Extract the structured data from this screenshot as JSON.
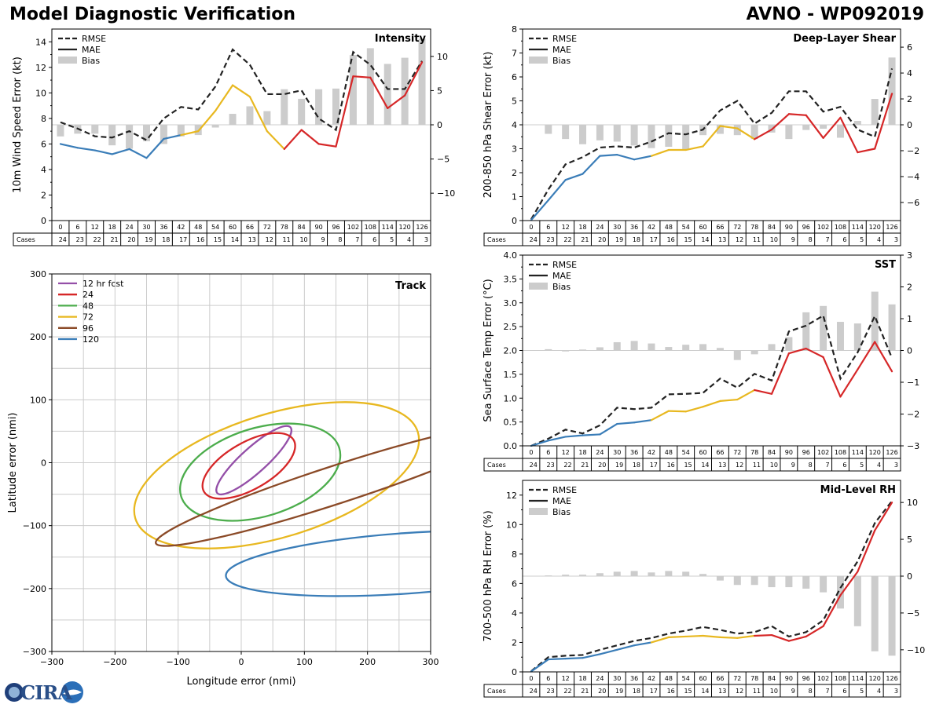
{
  "page": {
    "title": "Model Diagnostic Verification",
    "storm": "AVNO - WP092019",
    "logo_label": "CIRA"
  },
  "colors": {
    "rmse": "#222222",
    "bias": "#cccccc",
    "seg_early": "#3a7db8",
    "seg_mid": "#e8b820",
    "seg_late": "#d62728",
    "grid": "#cccccc"
  },
  "chart_data": [
    {
      "id": "intensity",
      "type": "line",
      "title": "Intensity",
      "ylabel": "10m Wind Speed Error (kt)",
      "ylim": [
        0,
        15
      ],
      "yticks": [
        0,
        2,
        4,
        6,
        8,
        10,
        12,
        14
      ],
      "y2lim": [
        -14,
        14
      ],
      "y2ticks": [
        -10,
        -5,
        0,
        5,
        10
      ],
      "legend": [
        "RMSE",
        "MAE",
        "Bias"
      ],
      "x": [
        0,
        6,
        12,
        18,
        24,
        30,
        36,
        42,
        48,
        54,
        60,
        66,
        72,
        78,
        84,
        90,
        96,
        102,
        108,
        114,
        120,
        126
      ],
      "cases": [
        24,
        23,
        22,
        21,
        20,
        19,
        18,
        17,
        16,
        15,
        14,
        13,
        12,
        11,
        10,
        9,
        8,
        7,
        6,
        5,
        4,
        3
      ],
      "cases_label": "Cases",
      "series": [
        {
          "name": "RMSE",
          "values": [
            7.7,
            7.2,
            6.6,
            6.5,
            7.0,
            6.3,
            8.0,
            8.9,
            8.7,
            10.5,
            13.4,
            12.2,
            9.9,
            9.9,
            10.2,
            8.0,
            7.1,
            13.2,
            12.2,
            10.3,
            10.3,
            12.5
          ]
        },
        {
          "name": "MAE",
          "values": [
            6.0,
            5.7,
            5.5,
            5.2,
            5.6,
            4.9,
            6.4,
            6.7,
            7.0,
            8.6,
            10.6,
            9.7,
            7.0,
            5.6,
            7.1,
            6.0,
            5.8,
            11.3,
            11.2,
            8.8,
            9.8,
            12.4
          ]
        },
        {
          "name": "Bias",
          "values": [
            -1.7,
            -1.3,
            -1.3,
            -3.0,
            -3.5,
            -2.4,
            -2.8,
            -1.7,
            -1.5,
            -0.4,
            1.6,
            2.7,
            2.0,
            5.2,
            3.8,
            5.2,
            5.3,
            10.2,
            11.2,
            8.9,
            9.8,
            12.6
          ]
        }
      ]
    },
    {
      "id": "shear",
      "type": "line",
      "title": "Deep-Layer Shear",
      "ylabel": "200-850 hPa Shear Error (kt)",
      "ylim": [
        0,
        8
      ],
      "yticks": [
        0,
        1,
        2,
        3,
        4,
        5,
        6,
        7,
        8
      ],
      "y2lim": [
        -7.4,
        7.4
      ],
      "y2ticks": [
        -6,
        -4,
        -2,
        0,
        2,
        4,
        6
      ],
      "legend": [
        "RMSE",
        "MAE",
        "Bias"
      ],
      "x": [
        0,
        6,
        12,
        18,
        24,
        30,
        36,
        42,
        48,
        54,
        60,
        66,
        72,
        78,
        84,
        90,
        96,
        102,
        108,
        114,
        120,
        126
      ],
      "cases": [
        24,
        23,
        22,
        21,
        20,
        19,
        18,
        17,
        16,
        15,
        14,
        13,
        12,
        11,
        10,
        9,
        8,
        7,
        6,
        5,
        4,
        3
      ],
      "cases_label": "Cases",
      "series": [
        {
          "name": "RMSE",
          "values": [
            0.05,
            1.3,
            2.35,
            2.65,
            3.05,
            3.1,
            3.05,
            3.3,
            3.65,
            3.6,
            3.8,
            4.6,
            5.0,
            4.05,
            4.5,
            5.4,
            5.4,
            4.55,
            4.75,
            3.8,
            3.5,
            6.35
          ]
        },
        {
          "name": "MAE",
          "values": [
            0.02,
            0.85,
            1.7,
            1.95,
            2.7,
            2.75,
            2.55,
            2.7,
            2.95,
            2.95,
            3.1,
            3.95,
            3.85,
            3.4,
            3.8,
            4.45,
            4.4,
            3.45,
            4.3,
            2.85,
            3.0,
            5.3
          ]
        },
        {
          "name": "Bias",
          "values": [
            0,
            -0.7,
            -1.1,
            -1.5,
            -1.2,
            -1.3,
            -1.6,
            -1.8,
            -1.7,
            -1.9,
            -0.8,
            -0.7,
            -0.8,
            -1.1,
            -0.6,
            -1.1,
            -0.4,
            -0.3,
            -1.0,
            0.3,
            2.0,
            5.2
          ]
        }
      ]
    },
    {
      "id": "sst",
      "type": "line",
      "title": "SST",
      "ylabel": "Sea Surface Temp Error (°C)",
      "ylim": [
        0,
        4
      ],
      "yticks": [
        0.0,
        0.5,
        1.0,
        1.5,
        2.0,
        2.5,
        3.0,
        3.5,
        4.0
      ],
      "y2lim": [
        -3,
        3
      ],
      "y2ticks": [
        -3,
        -2,
        -1,
        0,
        1,
        2,
        3
      ],
      "legend": [
        "RMSE",
        "MAE",
        "Bias"
      ],
      "x": [
        0,
        6,
        12,
        18,
        24,
        30,
        36,
        42,
        48,
        54,
        60,
        66,
        72,
        78,
        84,
        90,
        96,
        102,
        108,
        114,
        120,
        126
      ],
      "cases": [
        24,
        23,
        22,
        21,
        20,
        19,
        18,
        17,
        16,
        15,
        14,
        13,
        12,
        11,
        10,
        9,
        8,
        7,
        6,
        5,
        4,
        3
      ],
      "cases_label": "Cases",
      "series": [
        {
          "name": "RMSE",
          "values": [
            0.0,
            0.15,
            0.34,
            0.26,
            0.43,
            0.8,
            0.77,
            0.8,
            1.08,
            1.09,
            1.11,
            1.41,
            1.22,
            1.51,
            1.37,
            2.4,
            2.52,
            2.73,
            1.41,
            1.96,
            2.72,
            1.84
          ]
        },
        {
          "name": "MAE",
          "values": [
            0.0,
            0.11,
            0.19,
            0.22,
            0.24,
            0.46,
            0.49,
            0.54,
            0.73,
            0.72,
            0.82,
            0.94,
            0.97,
            1.17,
            1.09,
            1.94,
            2.04,
            1.86,
            1.03,
            1.6,
            2.18,
            1.56
          ]
        },
        {
          "name": "Bias",
          "values": [
            0.0,
            0.04,
            -0.03,
            0.03,
            0.1,
            0.26,
            0.3,
            0.22,
            0.11,
            0.18,
            0.2,
            0.08,
            -0.3,
            -0.12,
            0.2,
            0.42,
            1.2,
            1.4,
            0.9,
            0.85,
            1.85,
            1.45
          ]
        }
      ]
    },
    {
      "id": "rh",
      "type": "line",
      "title": "Mid-Level RH",
      "ylabel": "700-500 hPa RH Error (%)",
      "ylim": [
        0,
        13
      ],
      "yticks": [
        0,
        2,
        4,
        6,
        8,
        10,
        12
      ],
      "y2lim": [
        -13,
        13
      ],
      "y2ticks": [
        -10,
        -5,
        0,
        5,
        10
      ],
      "legend": [
        "RMSE",
        "MAE",
        "Bias"
      ],
      "x": [
        0,
        6,
        12,
        18,
        24,
        30,
        36,
        42,
        48,
        54,
        60,
        66,
        72,
        78,
        84,
        90,
        96,
        102,
        108,
        114,
        120,
        126
      ],
      "cases": [
        24,
        23,
        22,
        21,
        20,
        19,
        18,
        17,
        16,
        15,
        14,
        13,
        12,
        11,
        10,
        9,
        8,
        7,
        6,
        5,
        4,
        3
      ],
      "cases_label": "Cases",
      "series": [
        {
          "name": "RMSE",
          "values": [
            0.05,
            1.0,
            1.1,
            1.15,
            1.5,
            1.8,
            2.1,
            2.3,
            2.6,
            2.8,
            3.05,
            2.85,
            2.6,
            2.7,
            3.1,
            2.4,
            2.7,
            3.5,
            5.7,
            7.5,
            10.1,
            11.6
          ]
        },
        {
          "name": "MAE",
          "values": [
            0.03,
            0.85,
            0.9,
            0.95,
            1.2,
            1.5,
            1.8,
            2.0,
            2.35,
            2.4,
            2.45,
            2.35,
            2.3,
            2.45,
            2.5,
            2.1,
            2.4,
            3.1,
            5.2,
            6.8,
            9.6,
            11.5
          ]
        },
        {
          "name": "Bias",
          "values": [
            0,
            0.1,
            0.2,
            0.2,
            0.4,
            0.6,
            0.7,
            0.5,
            0.7,
            0.6,
            0.3,
            -0.6,
            -1.2,
            -1.2,
            -1.5,
            -1.5,
            -1.7,
            -2.2,
            -4.4,
            -6.8,
            -10.2,
            -10.8
          ]
        }
      ]
    },
    {
      "id": "track",
      "type": "scatter",
      "title": "Track",
      "xlabel": "Longitude error (nmi)",
      "ylabel": "Latitude error (nmi)",
      "xlim": [
        -300,
        300
      ],
      "ylim": [
        -300,
        300
      ],
      "xticks": [
        -300,
        -200,
        -100,
        0,
        100,
        200,
        300
      ],
      "yticks": [
        -300,
        -200,
        -100,
        0,
        100,
        200,
        300
      ],
      "grid_step": 50,
      "ellipses": [
        {
          "name": "12 hr fcst",
          "color": "#944fa8",
          "cx": 20,
          "cy": 4,
          "a": 78,
          "b": 20,
          "angle_deg": 42
        },
        {
          "name": "24",
          "color": "#d62728",
          "cx": 12,
          "cy": -5,
          "a": 82,
          "b": 37,
          "angle_deg": 30
        },
        {
          "name": "48",
          "color": "#4cad4c",
          "cx": 30,
          "cy": -15,
          "a": 131,
          "b": 70,
          "angle_deg": 17
        },
        {
          "name": "72",
          "color": "#e8b820",
          "cx": 56,
          "cy": -20,
          "a": 234,
          "b": 98,
          "angle_deg": 17
        },
        {
          "name": "96",
          "color": "#8b4a27",
          "cx": 150,
          "cy": -35,
          "a": 300,
          "b": 30,
          "angle_deg": 18
        },
        {
          "name": "120",
          "color": "#3a7db8",
          "cx": 260,
          "cy": -160,
          "a": 285,
          "b": 48,
          "angle_deg": 4
        }
      ]
    }
  ]
}
